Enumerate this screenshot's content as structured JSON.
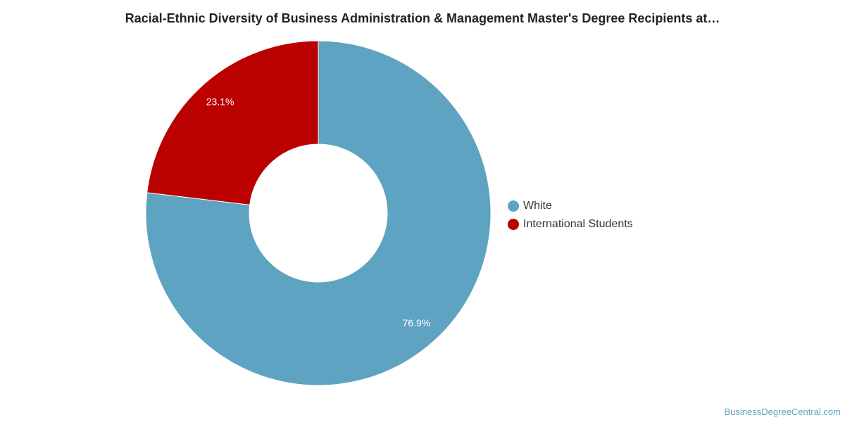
{
  "chart_data": {
    "type": "pie",
    "variant": "donut",
    "title": "Racial-Ethnic Diversity of Business Administration & Management Master's Degree Recipients at…",
    "categories": [
      "White",
      "International Students"
    ],
    "values": [
      76.9,
      23.1
    ],
    "labels": [
      "76.9%",
      "23.1%"
    ],
    "colors": [
      "#5ea3c1",
      "#bb0000"
    ],
    "legend_position": "right"
  },
  "watermark": "BusinessDegreeCentral.com"
}
